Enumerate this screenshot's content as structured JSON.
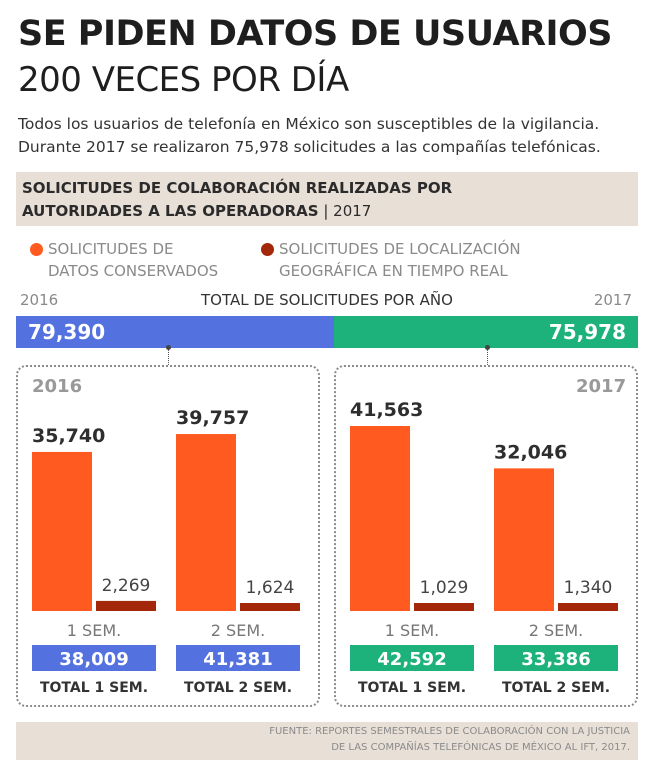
{
  "title_line1": "SE PIDEN DATOS DE USUARIOS",
  "title_line2": "200 VECES POR DÍA",
  "intro_line1": "Todos los usuarios de telefonía en México son susceptibles de la vigilancia.",
  "intro_line2": "Durante 2017 se realizaron 75,978 solicitudes a las compañías telefónicas.",
  "section": {
    "line1": "SOLICITUDES DE COLABORACIÓN REALIZADAS POR",
    "line2_bold": "AUTORIDADES A LAS OPERADORAS",
    "divider": " | ",
    "line2_year": "2017"
  },
  "legend": [
    {
      "line1": "SOLICITUDES DE",
      "line2": "DATOS CONSERVADOS",
      "color": "#ff5a1f"
    },
    {
      "line1": "SOLICITUDES DE LOCALIZACIÓN",
      "line2": "GEOGRÁFICA EN TIEMPO REAL",
      "color": "#a3280b"
    }
  ],
  "totals": {
    "heading": "TOTAL DE SOLICITUDES POR AÑO",
    "year_left": "2016",
    "year_right": "2017",
    "value_2016": "79,390",
    "value_2017": "75,978",
    "color_2016": "#5471e0",
    "color_2017": "#1db27c"
  },
  "chart_data": [
    {
      "type": "bar",
      "panel_label": "2016",
      "categories": [
        "1 SEM.",
        "2 SEM."
      ],
      "series": [
        {
          "name": "SOLICITUDES DE DATOS CONSERVADOS",
          "values": [
            35740,
            39757
          ],
          "labels": [
            "35,740",
            "39,757"
          ],
          "color": "#ff5a1f"
        },
        {
          "name": "SOLICITUDES DE LOCALIZACIÓN GEOGRÁFICA EN TIEMPO REAL",
          "values": [
            2269,
            1624
          ],
          "labels": [
            "2,269",
            "1,624"
          ],
          "color": "#a3280b"
        }
      ],
      "totals": [
        "38,009",
        "41,381"
      ],
      "total_labels": [
        "TOTAL 1 SEM.",
        "TOTAL 2 SEM."
      ],
      "total_color": "#5471e0"
    },
    {
      "type": "bar",
      "panel_label": "2017",
      "categories": [
        "1 SEM.",
        "2 SEM."
      ],
      "series": [
        {
          "name": "SOLICITUDES DE DATOS CONSERVADOS",
          "values": [
            41563,
            32046
          ],
          "labels": [
            "41,563",
            "32,046"
          ],
          "color": "#ff5a1f"
        },
        {
          "name": "SOLICITUDES DE LOCALIZACIÓN GEOGRÁFICA EN TIEMPO REAL",
          "values": [
            1029,
            1340
          ],
          "labels": [
            "1,029",
            "1,340"
          ],
          "color": "#a3280b"
        }
      ],
      "totals": [
        "42,592",
        "33,386"
      ],
      "total_labels": [
        "TOTAL 1 SEM.",
        "TOTAL 2 SEM."
      ],
      "total_color": "#1db27c"
    }
  ],
  "source_line1": "FUENTE: REPORTES SEMESTRALES DE COLABORACIÓN CON LA JUSTICIA",
  "source_line2": "DE LAS COMPAÑÍAS TELEFÓNICAS DE MÉXICO AL IFT, 2017."
}
